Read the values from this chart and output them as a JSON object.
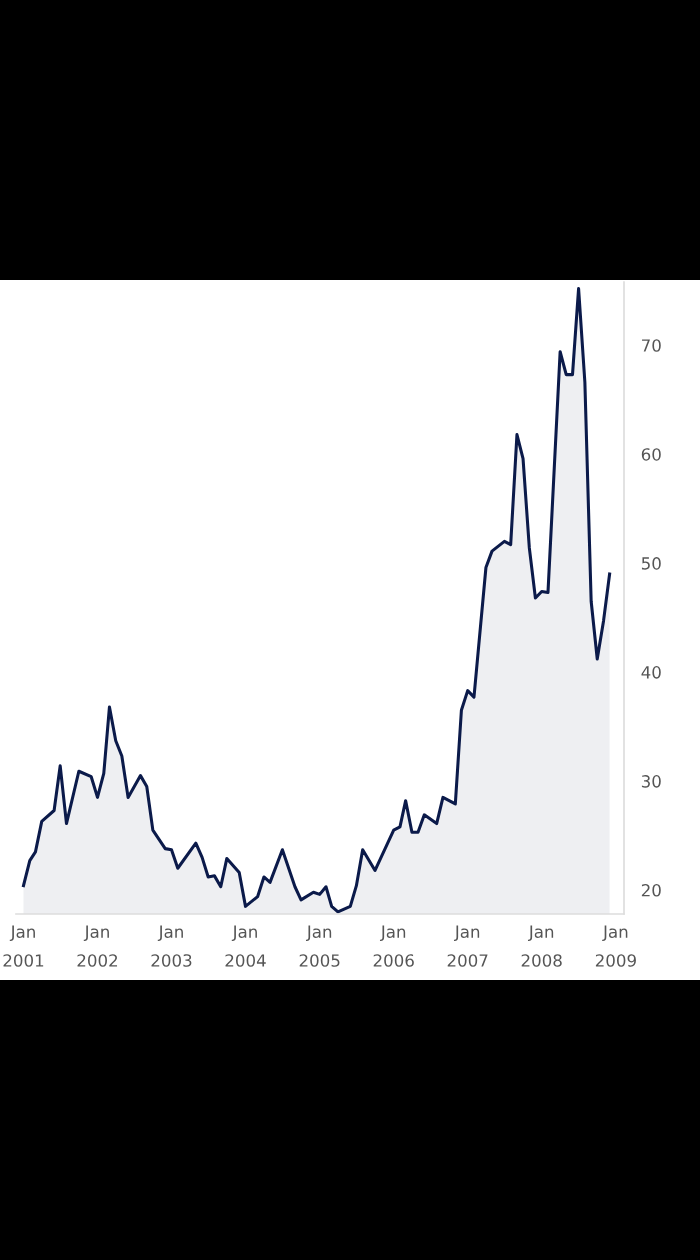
{
  "chart_data": {
    "type": "area",
    "x": [
      "2001-01",
      "2001-02",
      "2001-03",
      "2001-04",
      "2001-06",
      "2001-07",
      "2001-08",
      "2001-10",
      "2001-12",
      "2002-01",
      "2002-02",
      "2002-03",
      "2002-04",
      "2002-05",
      "2002-06",
      "2002-08",
      "2002-09",
      "2002-10",
      "2002-12",
      "2003-01",
      "2003-02",
      "2003-05",
      "2003-06",
      "2003-07",
      "2003-08",
      "2003-09",
      "2003-10",
      "2003-12",
      "2004-01",
      "2004-03",
      "2004-04",
      "2004-05",
      "2004-07",
      "2004-09",
      "2004-10",
      "2004-12",
      "2005-01",
      "2005-02",
      "2005-03",
      "2005-04",
      "2005-06",
      "2005-07",
      "2005-08",
      "2005-10",
      "2006-01",
      "2006-02",
      "2006-03",
      "2006-04",
      "2006-05",
      "2006-06",
      "2006-08",
      "2006-09",
      "2006-11",
      "2006-12",
      "2007-01",
      "2007-02",
      "2007-04",
      "2007-05",
      "2007-07",
      "2007-08",
      "2007-09",
      "2007-10",
      "2007-11",
      "2007-12",
      "2008-01",
      "2008-02",
      "2008-04",
      "2008-05",
      "2008-06",
      "2008-07",
      "2008-08",
      "2008-09",
      "2008-10",
      "2008-11",
      "2008-12"
    ],
    "series": [
      {
        "color": "#0b1a4a",
        "values": [
          20.4,
          22.7,
          23.5,
          26.3,
          27.3,
          31.4,
          26.1,
          30.9,
          30.4,
          28.5,
          30.7,
          36.8,
          33.7,
          32.3,
          28.5,
          30.5,
          29.5,
          25.5,
          23.8,
          23.7,
          22.0,
          24.3,
          23.0,
          21.2,
          21.3,
          20.3,
          22.9,
          21.6,
          18.5,
          19.4,
          21.2,
          20.7,
          23.7,
          20.3,
          19.1,
          19.8,
          19.6,
          20.3,
          18.5,
          18.0,
          18.5,
          20.4,
          23.7,
          21.8,
          25.5,
          25.8,
          28.2,
          25.3,
          25.3,
          26.9,
          26.1,
          28.5,
          27.9,
          36.5,
          38.3,
          37.7,
          49.6,
          51.1,
          52.0,
          51.7,
          61.8,
          59.6,
          51.4,
          46.8,
          47.4,
          47.3,
          69.4,
          67.3,
          67.3,
          75.2,
          66.6,
          46.5,
          41.2,
          44.7,
          49.0
        ]
      }
    ],
    "xlim": [
      "2000-11-25",
      "2009-02-10"
    ],
    "xticks": [
      {
        "value": "2001-01-01",
        "label": "Jan\n2001"
      },
      {
        "value": "2002-01-01",
        "label": "Jan\n2002"
      },
      {
        "value": "2003-01-01",
        "label": "Jan\n2003"
      },
      {
        "value": "2004-01-01",
        "label": "Jan\n2004"
      },
      {
        "value": "2005-01-01",
        "label": "Jan\n2005"
      },
      {
        "value": "2006-01-01",
        "label": "Jan\n2006"
      },
      {
        "value": "2007-01-01",
        "label": "Jan\n2007"
      },
      {
        "value": "2008-01-01",
        "label": "Jan\n2008"
      },
      {
        "value": "2009-01-01",
        "label": "Jan\n2009"
      }
    ],
    "ylim": [
      17.8,
      75.8
    ],
    "yticks": [
      20,
      30,
      40,
      50,
      60,
      70
    ],
    "grid": false,
    "legend": false
  }
}
